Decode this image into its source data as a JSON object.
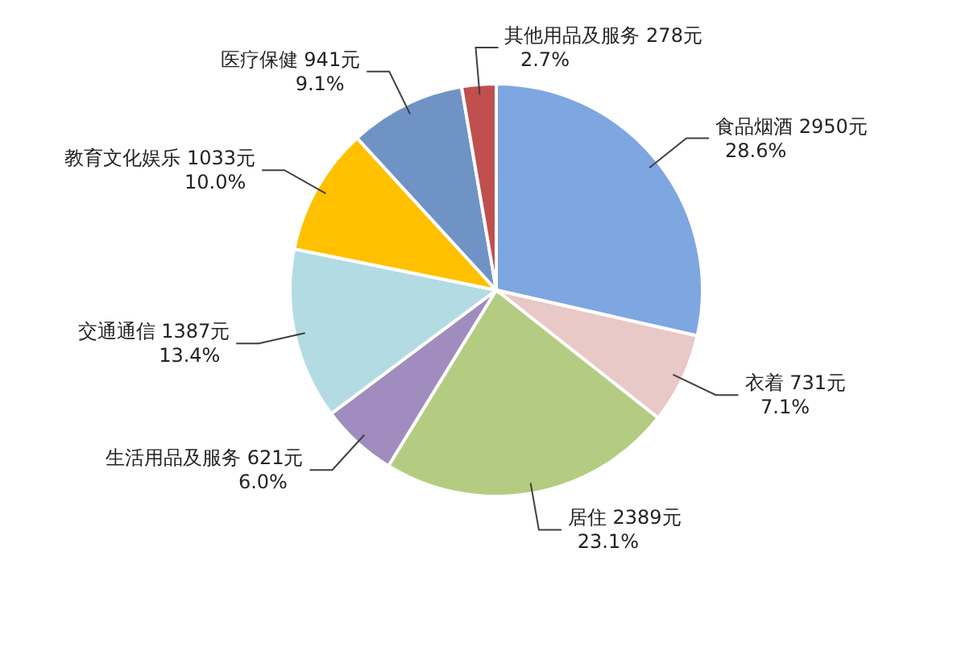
{
  "chart_data": {
    "type": "pie",
    "categories": [
      "食品烟酒",
      "衣着",
      "居住",
      "生活用品及服务",
      "交通通信",
      "教育文化娱乐",
      "医疗保健",
      "其他用品及服务"
    ],
    "values": [
      2950,
      731,
      2389,
      621,
      1387,
      1033,
      941,
      278
    ],
    "value_labels": [
      "2950元\n28.6%",
      "731元\n7.1%",
      "2389元\n23.1%",
      "621元\n6.0%",
      "1387元\n13.4%",
      "1033元\n10.0%",
      "941元\n9.1%",
      "278元\n2.7%"
    ],
    "colors": [
      "#7ea6e0",
      "#e9c8c8",
      "#b3cc82",
      "#a08cbf",
      "#b3dbe4",
      "#ffc000",
      "#6f93c5",
      "#c0504d"
    ]
  }
}
